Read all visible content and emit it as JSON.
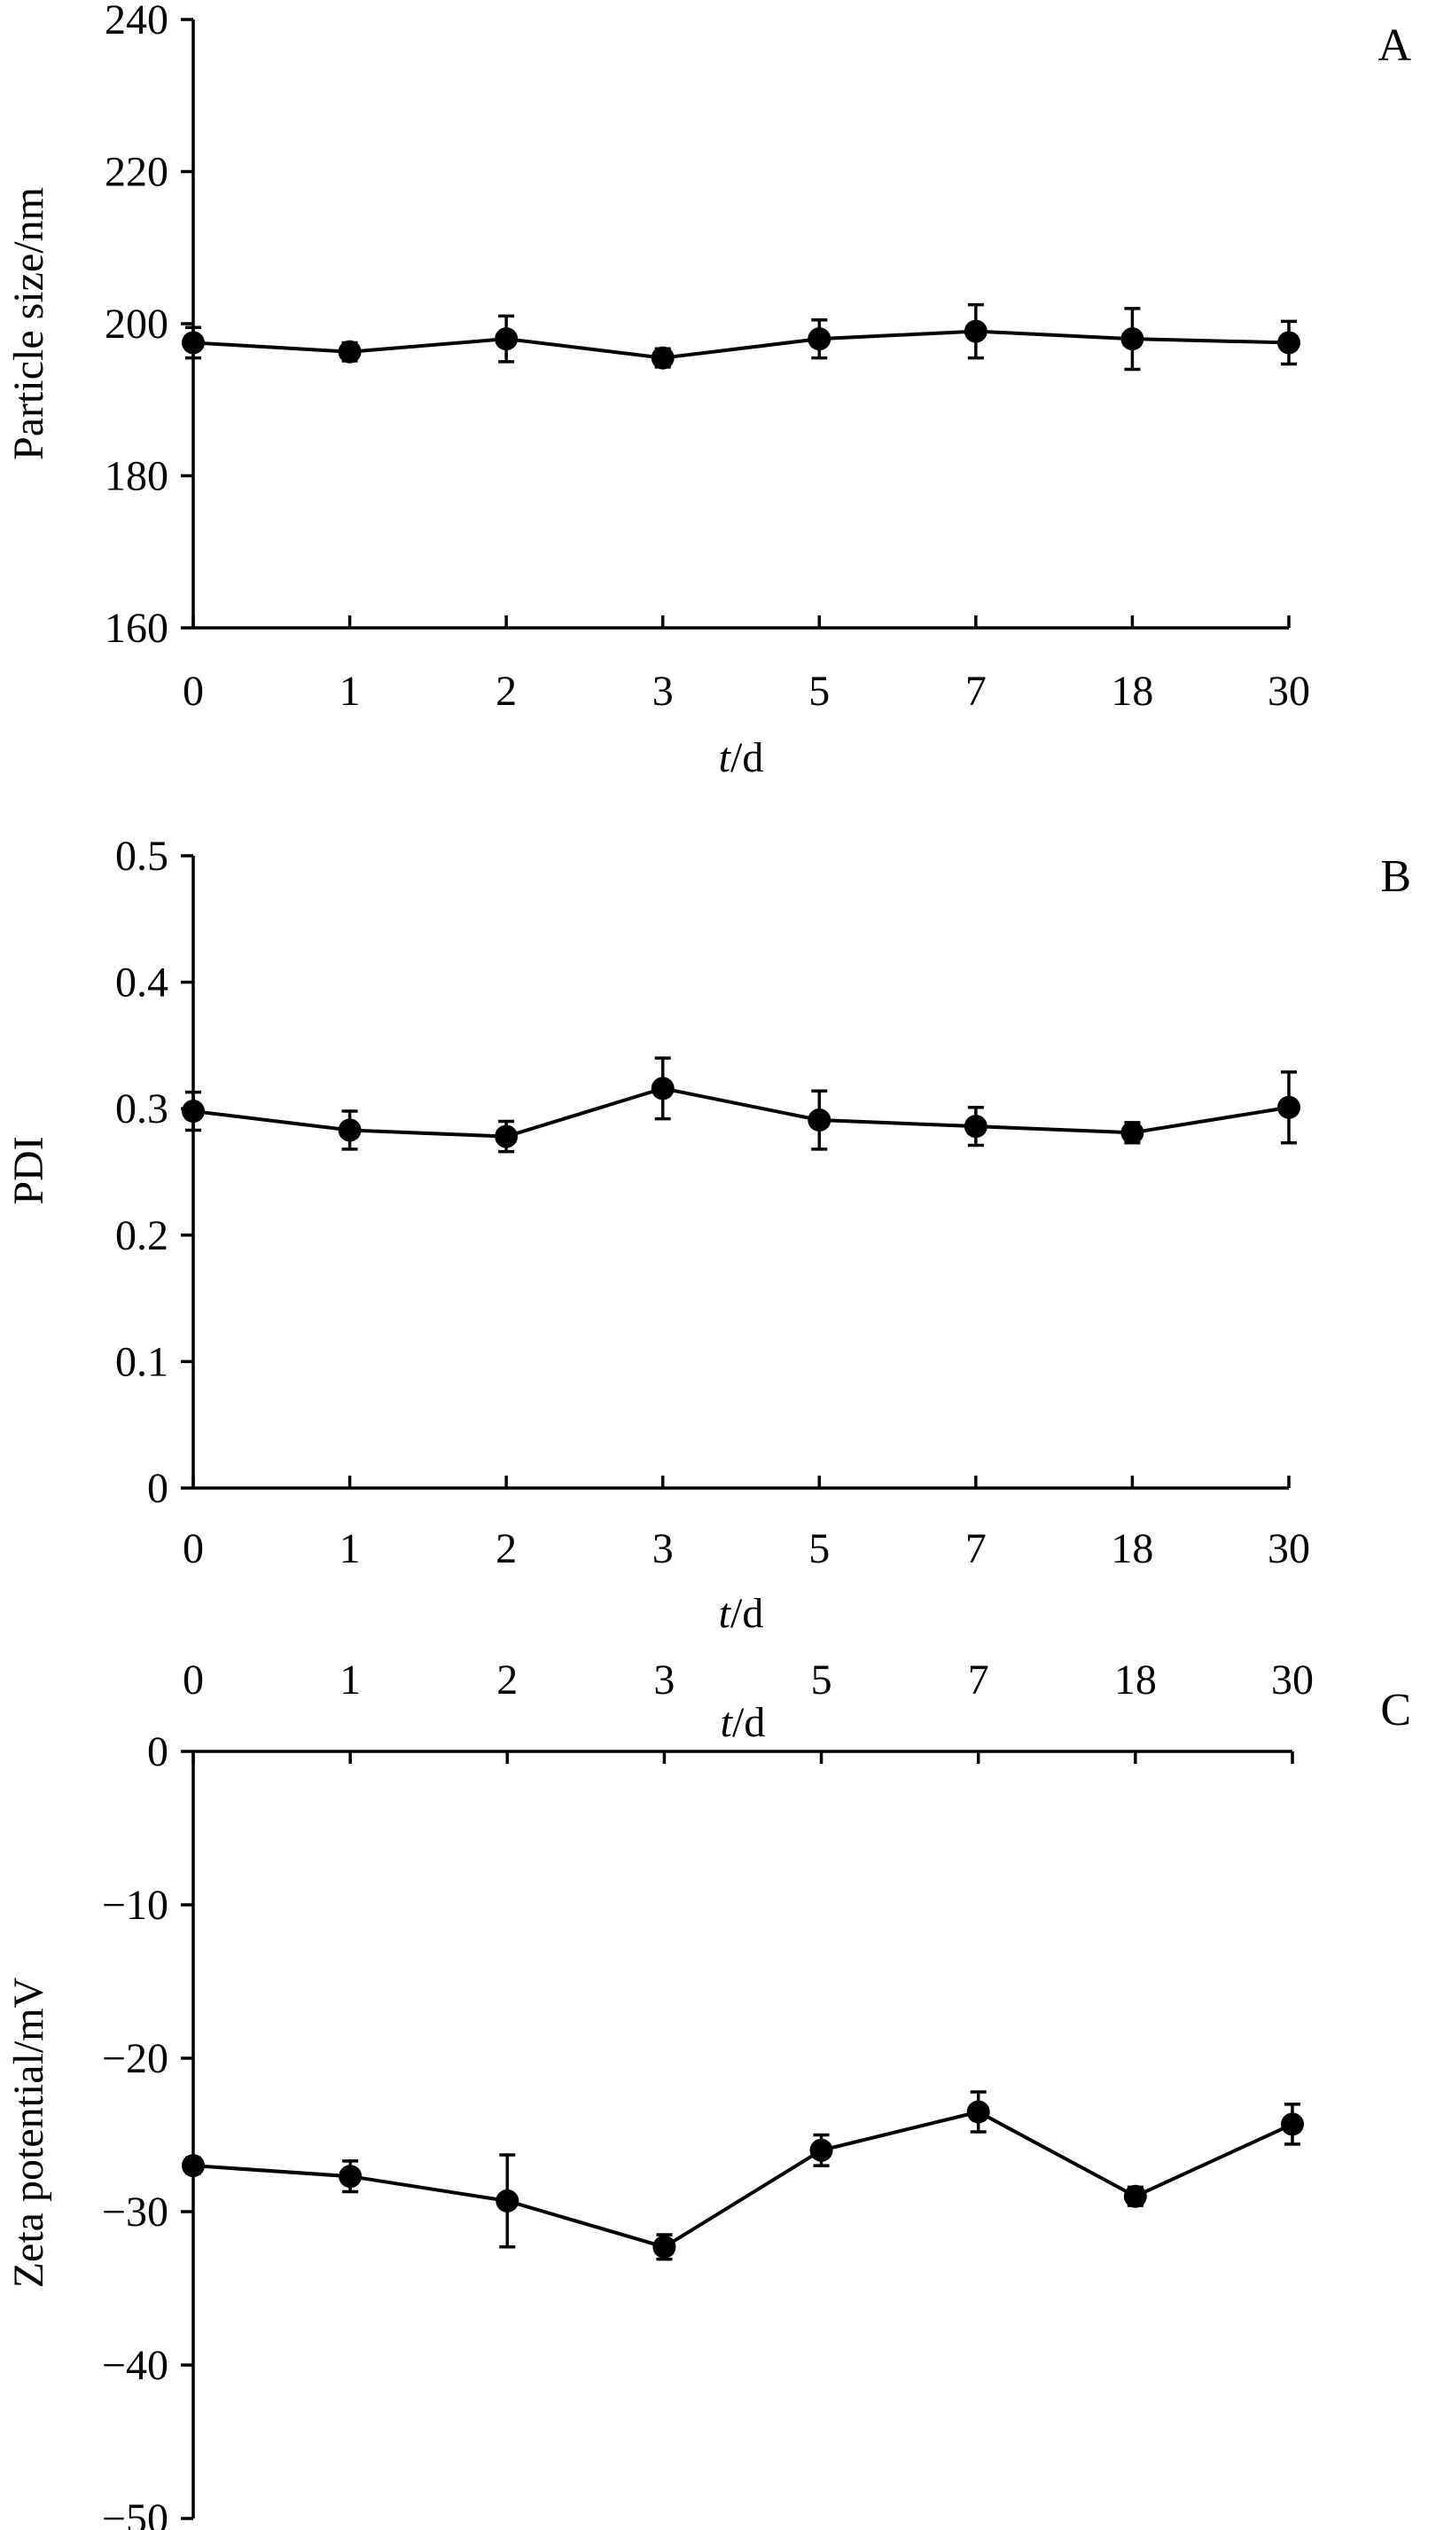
{
  "chart_data": [
    {
      "type": "line",
      "panel_label": "A",
      "categories": [
        "0",
        "1",
        "2",
        "3",
        "5",
        "7",
        "18",
        "30"
      ],
      "series": [
        {
          "values": [
            197.5,
            196.3,
            198.0,
            195.5,
            198.0,
            199.0,
            198.0,
            197.5
          ],
          "errors": [
            2.0,
            1.2,
            3.0,
            1.2,
            2.5,
            3.5,
            4.0,
            2.8
          ]
        }
      ],
      "xlabel_italic": "t",
      "xlabel_rest": "/d",
      "ylabel": "Particle size/nm",
      "ylim": [
        160,
        240
      ],
      "yticks": [
        "160",
        "180",
        "200",
        "220",
        "240"
      ],
      "x_axis_position": "bottom",
      "grid": false,
      "marker": "filled-circle",
      "color": "#000000"
    },
    {
      "type": "line",
      "panel_label": "B",
      "categories": [
        "0",
        "1",
        "2",
        "3",
        "5",
        "7",
        "18",
        "30"
      ],
      "series": [
        {
          "values": [
            0.298,
            0.283,
            0.278,
            0.316,
            0.291,
            0.286,
            0.281,
            0.301
          ],
          "errors": [
            0.015,
            0.015,
            0.012,
            0.024,
            0.023,
            0.015,
            0.008,
            0.028
          ]
        }
      ],
      "xlabel_italic": "t",
      "xlabel_rest": "/d",
      "ylabel": "PDI",
      "ylim": [
        0,
        0.5
      ],
      "yticks": [
        "0",
        "0.1",
        "0.2",
        "0.3",
        "0.4",
        "0.5"
      ],
      "x_axis_position": "bottom",
      "grid": false,
      "marker": "filled-circle",
      "color": "#000000"
    },
    {
      "type": "line",
      "panel_label": "C",
      "categories": [
        "0",
        "1",
        "2",
        "3",
        "5",
        "7",
        "18",
        "30"
      ],
      "series": [
        {
          "values": [
            -27.0,
            -27.7,
            -29.3,
            -32.3,
            -26.0,
            -23.5,
            -29.0,
            -24.3
          ],
          "errors": [
            0.5,
            1.0,
            3.0,
            0.8,
            1.0,
            1.3,
            0.6,
            1.3
          ]
        }
      ],
      "xlabel_italic": "t",
      "xlabel_rest": "/d",
      "ylabel": "Zeta potential/mV",
      "ylim": [
        -50,
        0
      ],
      "yticks": [
        "−50",
        "−40",
        "−30",
        "−20",
        "−10",
        "0"
      ],
      "x_axis_position": "top",
      "grid": false,
      "marker": "filled-circle",
      "color": "#000000"
    }
  ]
}
